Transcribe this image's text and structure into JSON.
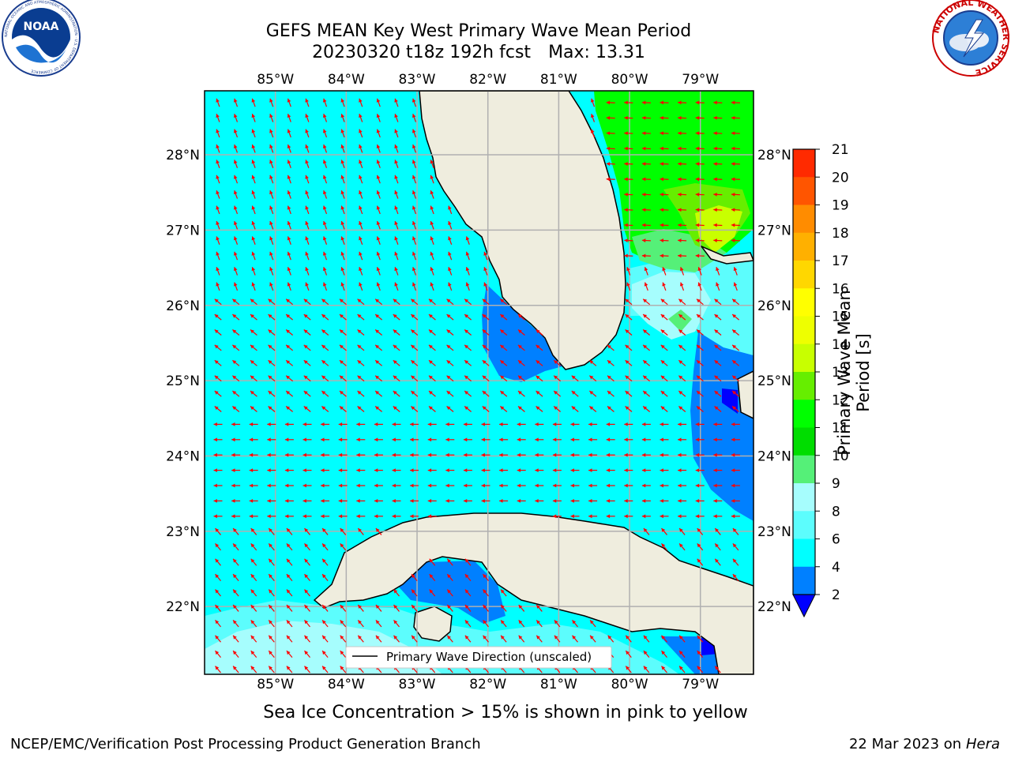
{
  "title": {
    "line1": "GEFS MEAN Key West Primary Wave Mean Period",
    "line2_date": "20230320 t18z 192h fcst",
    "line2_max": "Max: 13.31"
  },
  "map": {
    "lon_labels": [
      "85°W",
      "84°W",
      "83°W",
      "82°W",
      "81°W",
      "80°W",
      "79°W"
    ],
    "lat_labels": [
      "28°N",
      "27°N",
      "26°N",
      "25°N",
      "24°N",
      "23°N",
      "22°N"
    ],
    "lon_range": [
      -86.0,
      -78.25
    ],
    "lat_range": [
      21.1,
      28.85
    ],
    "colors": {
      "ocean_4_6": "#00ffff",
      "ocean_2_4": "#0080ff",
      "ocean_lt2": "#0000ff",
      "band_6_8": "#5cfdfd",
      "band_8_9": "#a6fdfd",
      "band_9_10": "#55f078",
      "band_10_11": "#00ff00",
      "band_11_12": "#66ee00",
      "band_12_13": "#c8ff00",
      "land": "#efedde",
      "arrow": "#ff0000",
      "grid": "#b0b0b0"
    },
    "legend_label": "Primary Wave Direction (unscaled)"
  },
  "colorbar": {
    "label": "Primary Wave Mean Period [s]",
    "ticks": [
      "21",
      "20",
      "19",
      "18",
      "17",
      "16",
      "15",
      "14",
      "13",
      "12",
      "11",
      "10",
      "9",
      "8",
      "6",
      "4",
      "2"
    ],
    "colors": [
      "#0000ff",
      "#0080ff",
      "#00ffff",
      "#5cfdfd",
      "#a6fdfd",
      "#55f078",
      "#00dd00",
      "#00ff00",
      "#66ee00",
      "#c8ff00",
      "#eeff00",
      "#ffff00",
      "#ffd700",
      "#ffb000",
      "#ff8c00",
      "#ff5500",
      "#ff2a00",
      "#ff0000"
    ]
  },
  "caption": "Sea Ice Concentration > 15% is shown in pink to yellow",
  "footer": {
    "left": "NCEP/EMC/Verification Post Processing Product Generation Branch",
    "right_prefix": "22 Mar 2023 on",
    "right_system": "Hera"
  },
  "logos": {
    "left": "NOAA",
    "left_ring": "NATIONAL OCEANIC AND ATMOSPHERIC ADMINISTRATION · U.S. DEPARTMENT OF COMMERCE",
    "right_ring": "NATIONAL WEATHER SERVICE"
  }
}
